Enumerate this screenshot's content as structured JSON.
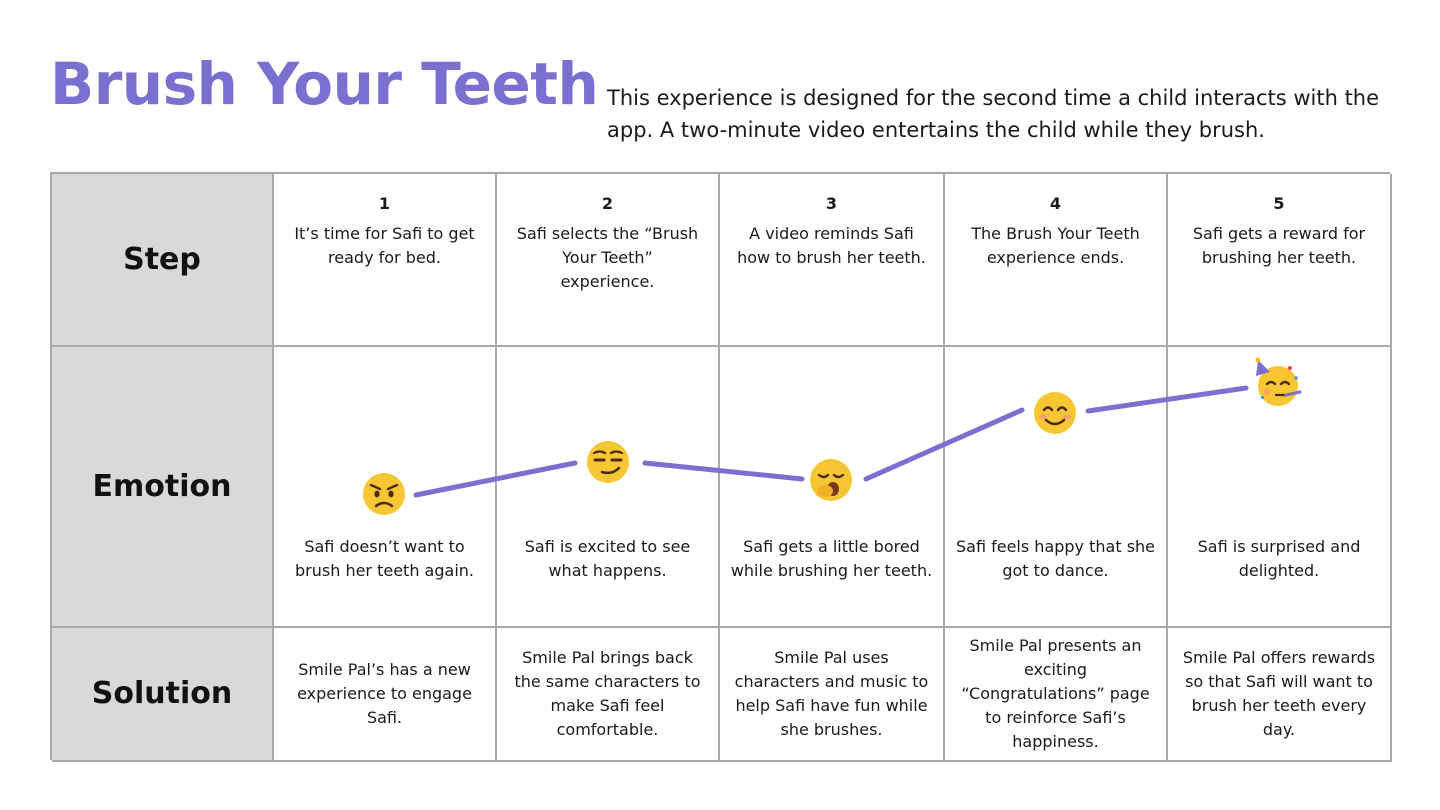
{
  "header": {
    "title": "Brush Your Teeth",
    "description": "This experience is designed for the second time a child interacts with the app. A two-minute video entertains the child while they brush."
  },
  "colors": {
    "accent": "#7b6fd0",
    "label_bg": "#d9d9d9",
    "grid_line": "#a9a9a9",
    "emoji_yellow": "#f7c733"
  },
  "rows": {
    "step": "Step",
    "emotion": "Emotion",
    "solution": "Solution"
  },
  "steps": [
    {
      "number": "1",
      "step_text": "It’s time for Safi to get ready for bed.",
      "emotion_icon": "angry-face-icon",
      "emotion_text": "Safi doesn’t want to brush her teeth again.",
      "solution": "Smile Pal’s has a new experience to engage Safi."
    },
    {
      "number": "2",
      "step_text": "Safi selects the “Brush Your Teeth” experience.",
      "emotion_icon": "smirking-face-icon",
      "emotion_text": "Safi is excited to see what happens.",
      "solution": "Smile Pal brings back the same characters to make Safi feel comfortable."
    },
    {
      "number": "3",
      "step_text": "A video reminds Safi how to brush her teeth.",
      "emotion_icon": "yawning-face-icon",
      "emotion_text": "Safi gets a little bored while brushing her teeth.",
      "solution": "Smile Pal uses characters and music to help Safi have fun while she brushes."
    },
    {
      "number": "4",
      "step_text": "The Brush Your Teeth experience ends.",
      "emotion_icon": "smiling-face-icon",
      "emotion_text": "Safi feels happy that she got to dance.",
      "solution": "Smile Pal presents an exciting “Congratulations” page to reinforce Safi’s happiness."
    },
    {
      "number": "5",
      "step_text": "Safi gets a reward for brushing her teeth.",
      "emotion_icon": "partying-face-icon",
      "emotion_text": "Safi is surprised and delighted.",
      "solution": "Smile Pal offers rewards so that Safi will want to brush her teeth every day."
    }
  ]
}
